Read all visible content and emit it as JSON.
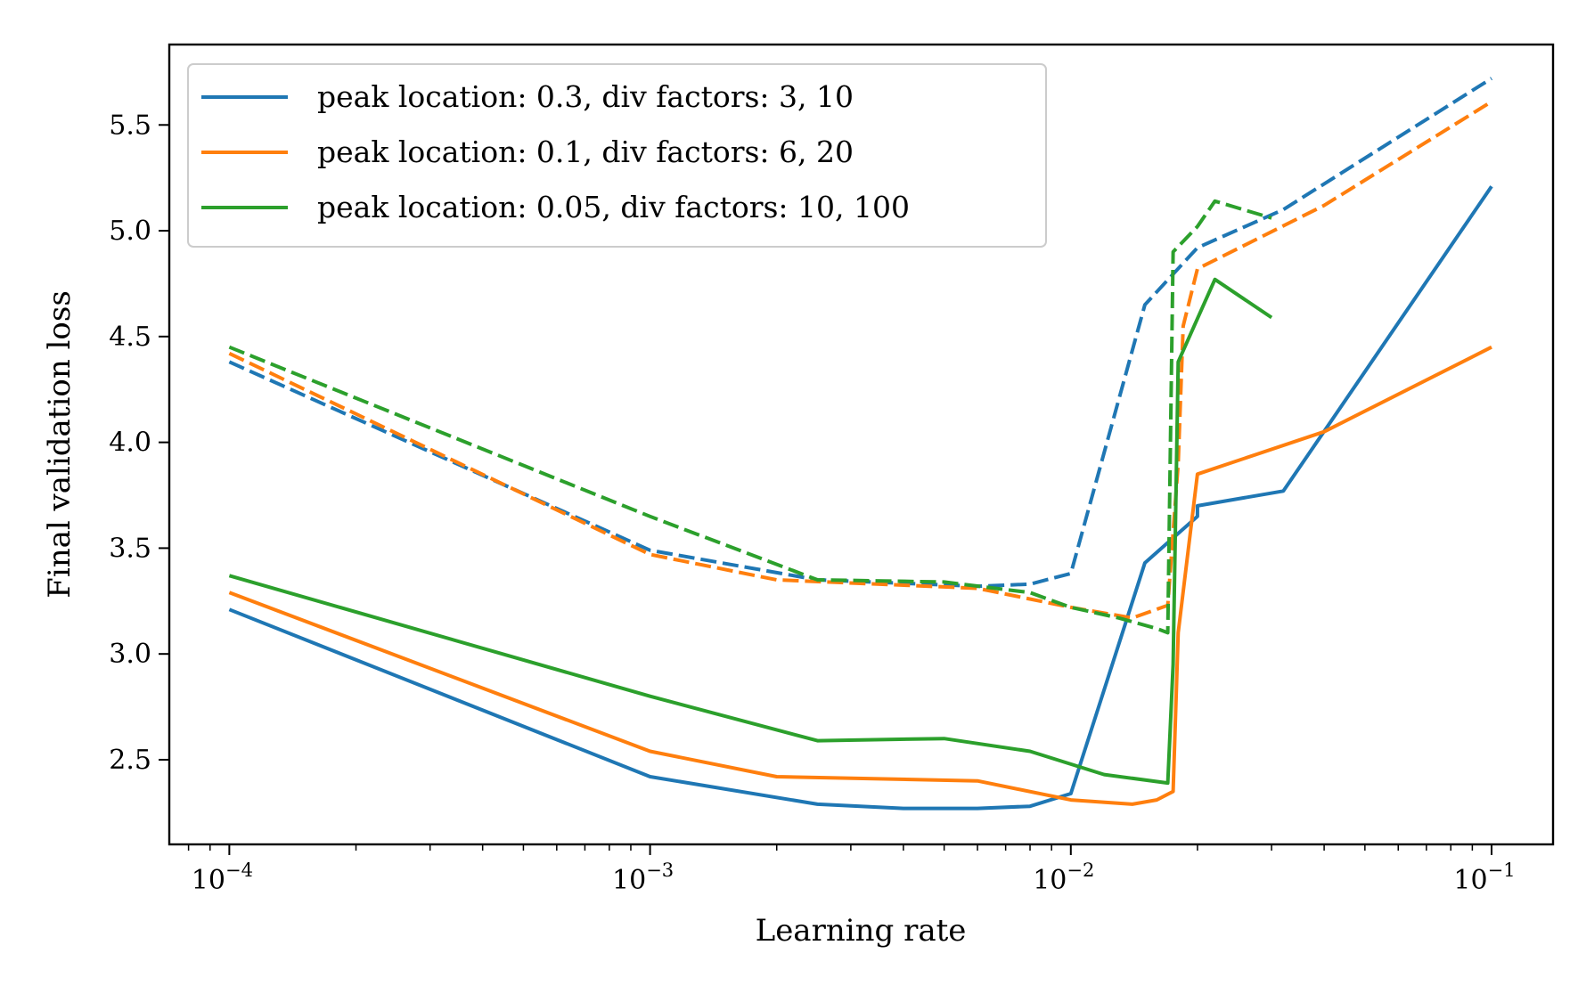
{
  "chart_data": {
    "type": "line",
    "xlabel": "Learning rate",
    "ylabel": "Final validation loss",
    "x_scale": "log",
    "xlim": [
      7.2e-05,
      0.14
    ],
    "ylim": [
      2.1,
      5.88
    ],
    "x_ticks": [
      {
        "value": 0.0001,
        "base": "10",
        "exp": "−4"
      },
      {
        "value": 0.001,
        "base": "10",
        "exp": "−3"
      },
      {
        "value": 0.01,
        "base": "10",
        "exp": "−2"
      },
      {
        "value": 0.1,
        "base": "10",
        "exp": "−1"
      }
    ],
    "y_ticks": [
      {
        "value": 2.5,
        "label": "2.5"
      },
      {
        "value": 3.0,
        "label": "3.0"
      },
      {
        "value": 3.5,
        "label": "3.5"
      },
      {
        "value": 4.0,
        "label": "4.0"
      },
      {
        "value": 4.5,
        "label": "4.5"
      },
      {
        "value": 5.0,
        "label": "5.0"
      },
      {
        "value": 5.5,
        "label": "5.5"
      }
    ],
    "grid": false,
    "legend_position": "top-left",
    "series": [
      {
        "name": "peak location: 0.3, div factors: 3, 10",
        "color": "#1f77b4",
        "solid": [
          [
            0.0001,
            3.21
          ],
          [
            0.001,
            2.42
          ],
          [
            0.0025,
            2.29
          ],
          [
            0.004,
            2.27
          ],
          [
            0.006,
            2.27
          ],
          [
            0.008,
            2.28
          ],
          [
            0.01,
            2.34
          ],
          [
            0.015,
            3.43
          ],
          [
            0.02,
            3.65
          ],
          [
            0.02,
            3.7
          ],
          [
            0.032,
            3.77
          ],
          [
            0.1,
            5.21
          ]
        ],
        "dashed": [
          [
            0.0001,
            4.38
          ],
          [
            0.001,
            3.49
          ],
          [
            0.0025,
            3.35
          ],
          [
            0.006,
            3.32
          ],
          [
            0.008,
            3.33
          ],
          [
            0.01,
            3.38
          ],
          [
            0.015,
            4.65
          ],
          [
            0.02,
            4.92
          ],
          [
            0.032,
            5.1
          ],
          [
            0.1,
            5.72
          ]
        ]
      },
      {
        "name": "peak location: 0.1, div factors: 6, 20",
        "color": "#ff7f0e",
        "solid": [
          [
            0.0001,
            3.29
          ],
          [
            0.001,
            2.54
          ],
          [
            0.002,
            2.42
          ],
          [
            0.006,
            2.4
          ],
          [
            0.01,
            2.31
          ],
          [
            0.014,
            2.29
          ],
          [
            0.016,
            2.31
          ],
          [
            0.0175,
            2.35
          ],
          [
            0.018,
            3.1
          ],
          [
            0.02,
            3.85
          ],
          [
            0.04,
            4.05
          ],
          [
            0.1,
            4.45
          ]
        ],
        "dashed": [
          [
            0.0001,
            4.42
          ],
          [
            0.001,
            3.47
          ],
          [
            0.002,
            3.35
          ],
          [
            0.006,
            3.31
          ],
          [
            0.01,
            3.22
          ],
          [
            0.014,
            3.17
          ],
          [
            0.017,
            3.23
          ],
          [
            0.018,
            3.9
          ],
          [
            0.0185,
            4.55
          ],
          [
            0.02,
            4.82
          ],
          [
            0.04,
            5.12
          ],
          [
            0.1,
            5.61
          ]
        ]
      },
      {
        "name": "peak location: 0.05, div factors: 10, 100",
        "color": "#2ca02c",
        "solid": [
          [
            0.0001,
            3.37
          ],
          [
            0.001,
            2.8
          ],
          [
            0.0025,
            2.59
          ],
          [
            0.005,
            2.6
          ],
          [
            0.008,
            2.54
          ],
          [
            0.012,
            2.43
          ],
          [
            0.017,
            2.39
          ],
          [
            0.0175,
            2.95
          ],
          [
            0.018,
            4.38
          ],
          [
            0.022,
            4.77
          ],
          [
            0.03,
            4.59
          ]
        ],
        "dashed": [
          [
            0.0001,
            4.45
          ],
          [
            0.001,
            3.65
          ],
          [
            0.0025,
            3.35
          ],
          [
            0.005,
            3.34
          ],
          [
            0.008,
            3.29
          ],
          [
            0.01,
            3.22
          ],
          [
            0.013,
            3.17
          ],
          [
            0.016,
            3.12
          ],
          [
            0.017,
            3.1
          ],
          [
            0.0175,
            4.9
          ],
          [
            0.02,
            5.02
          ],
          [
            0.022,
            5.14
          ],
          [
            0.03,
            5.06
          ]
        ]
      }
    ]
  }
}
